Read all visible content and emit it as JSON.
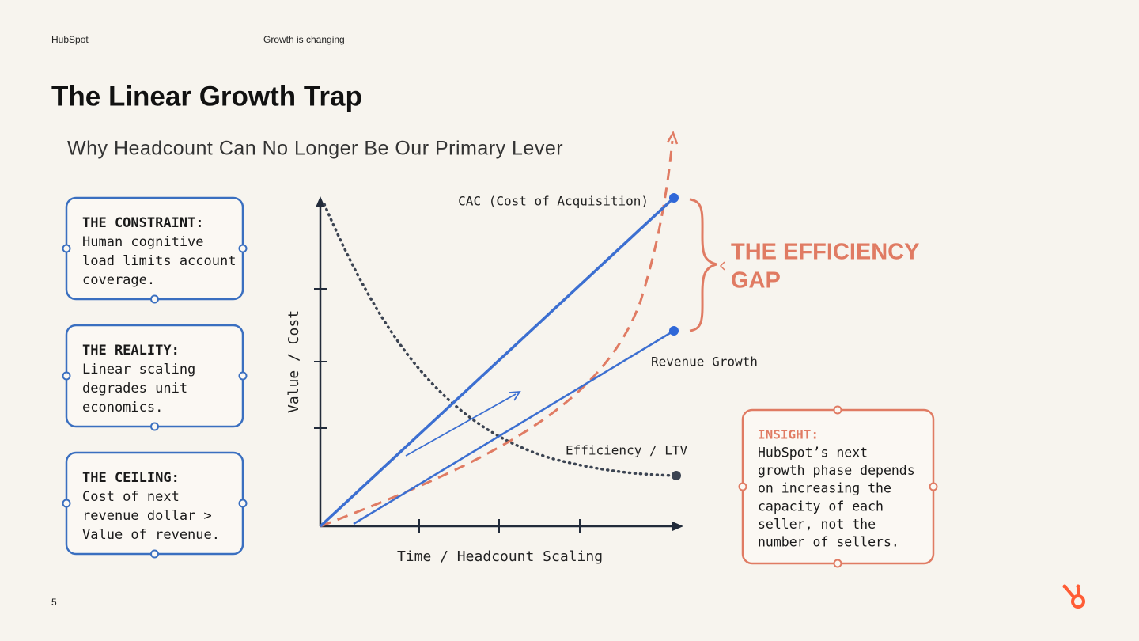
{
  "header": {
    "brand": "HubSpot",
    "section": "Growth is changing"
  },
  "title": "The Linear Growth Trap",
  "subtitle": "Why Headcount Can No Longer Be Our Primary Lever",
  "boxes": [
    {
      "label": "THE CONSTRAINT:",
      "lines": [
        "Human cognitive",
        "load limits account",
        "coverage."
      ]
    },
    {
      "label": "THE REALITY:",
      "lines": [
        "Linear scaling",
        "degrades unit",
        "economics."
      ]
    },
    {
      "label": "THE CEILING:",
      "lines": [
        "Cost of next",
        "revenue dollar >",
        "Value of revenue."
      ]
    }
  ],
  "diagram": {
    "y_axis": "Value / Cost",
    "x_axis": "Time / Headcount Scaling",
    "cac": "CAC (Cost of Acquisition)",
    "revenue": "Revenue Growth",
    "efficiency": "Efficiency / LTV",
    "gap": [
      "THE EFFICIENCY",
      "GAP"
    ]
  },
  "insight": {
    "label": "INSIGHT:",
    "lines": [
      "HubSpot’s next",
      "growth phase depends",
      "on increasing the",
      "capacity of each",
      "seller, not the",
      "number of sellers."
    ]
  },
  "page_number": "5"
}
